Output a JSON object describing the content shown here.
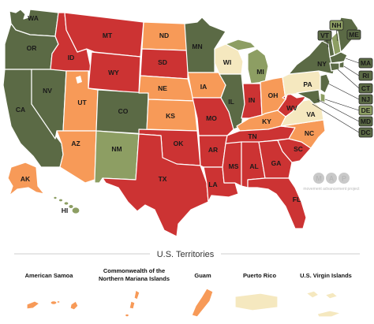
{
  "colors": {
    "red": "#cc3333",
    "dark_green": "#5b6a45",
    "sage": "#8d9e63",
    "orange": "#f79a58",
    "cream": "#f5e8bf",
    "border": "#ffffff"
  },
  "states": [
    {
      "code": "WA",
      "label": "WA",
      "color": "dark_green"
    },
    {
      "code": "OR",
      "label": "OR",
      "color": "dark_green"
    },
    {
      "code": "CA",
      "label": "CA",
      "color": "dark_green"
    },
    {
      "code": "NV",
      "label": "NV",
      "color": "dark_green"
    },
    {
      "code": "ID",
      "label": "ID",
      "color": "red"
    },
    {
      "code": "MT",
      "label": "MT",
      "color": "red"
    },
    {
      "code": "WY",
      "label": "WY",
      "color": "red"
    },
    {
      "code": "UT",
      "label": "UT",
      "color": "orange"
    },
    {
      "code": "AZ",
      "label": "AZ",
      "color": "orange"
    },
    {
      "code": "CO",
      "label": "CO",
      "color": "dark_green"
    },
    {
      "code": "NM",
      "label": "NM",
      "color": "sage"
    },
    {
      "code": "ND",
      "label": "ND",
      "color": "orange"
    },
    {
      "code": "SD",
      "label": "SD",
      "color": "red"
    },
    {
      "code": "NE",
      "label": "NE",
      "color": "orange"
    },
    {
      "code": "KS",
      "label": "KS",
      "color": "orange"
    },
    {
      "code": "OK",
      "label": "OK",
      "color": "red"
    },
    {
      "code": "TX",
      "label": "TX",
      "color": "red"
    },
    {
      "code": "MN",
      "label": "MN",
      "color": "dark_green"
    },
    {
      "code": "IA",
      "label": "IA",
      "color": "orange"
    },
    {
      "code": "MO",
      "label": "MO",
      "color": "red"
    },
    {
      "code": "AR",
      "label": "AR",
      "color": "red"
    },
    {
      "code": "LA",
      "label": "LA",
      "color": "red"
    },
    {
      "code": "WI",
      "label": "WI",
      "color": "cream"
    },
    {
      "code": "IL",
      "label": "IL",
      "color": "dark_green"
    },
    {
      "code": "MI",
      "label": "MI",
      "color": "sage"
    },
    {
      "code": "IN",
      "label": "IN",
      "color": "red"
    },
    {
      "code": "OH",
      "label": "OH",
      "color": "orange"
    },
    {
      "code": "KY",
      "label": "KY",
      "color": "orange"
    },
    {
      "code": "TN",
      "label": "TN",
      "color": "red"
    },
    {
      "code": "MS",
      "label": "MS",
      "color": "red"
    },
    {
      "code": "AL",
      "label": "AL",
      "color": "red"
    },
    {
      "code": "GA",
      "label": "GA",
      "color": "red"
    },
    {
      "code": "FL",
      "label": "FL",
      "color": "red"
    },
    {
      "code": "SC",
      "label": "SC",
      "color": "red"
    },
    {
      "code": "NC",
      "label": "NC",
      "color": "orange"
    },
    {
      "code": "VA",
      "label": "VA",
      "color": "cream"
    },
    {
      "code": "WV",
      "label": "WV",
      "color": "red"
    },
    {
      "code": "PA",
      "label": "PA",
      "color": "cream"
    },
    {
      "code": "NY",
      "label": "NY",
      "color": "dark_green"
    },
    {
      "code": "ME",
      "label": "ME",
      "color": "dark_green"
    },
    {
      "code": "VT",
      "label": "VT",
      "color": "dark_green"
    },
    {
      "code": "NH",
      "label": "NH",
      "color": "sage"
    },
    {
      "code": "MA",
      "label": "MA",
      "color": "dark_green"
    },
    {
      "code": "RI",
      "label": "RI",
      "color": "dark_green"
    },
    {
      "code": "CT",
      "label": "CT",
      "color": "dark_green"
    },
    {
      "code": "NJ",
      "label": "NJ",
      "color": "dark_green"
    },
    {
      "code": "DE",
      "label": "DE",
      "color": "sage"
    },
    {
      "code": "MD",
      "label": "MD",
      "color": "dark_green"
    },
    {
      "code": "DC",
      "label": "DC",
      "color": "dark_green"
    },
    {
      "code": "AK",
      "label": "AK",
      "color": "orange"
    },
    {
      "code": "HI",
      "label": "HI",
      "color": "sage"
    }
  ],
  "territories_title": "U.S. Territories",
  "territories": [
    {
      "name": "American Samoa",
      "color": "orange"
    },
    {
      "name_line1": "Commonwealth of the",
      "name_line2": "Northern Mariana Islands",
      "color": "orange"
    },
    {
      "name": "Guam",
      "color": "orange"
    },
    {
      "name": "Puerto Rico",
      "color": "cream"
    },
    {
      "name": "U.S. Virgin Islands",
      "color": "cream"
    }
  ],
  "watermark": {
    "logo": "MAP",
    "tagline": "movement advancement project"
  }
}
